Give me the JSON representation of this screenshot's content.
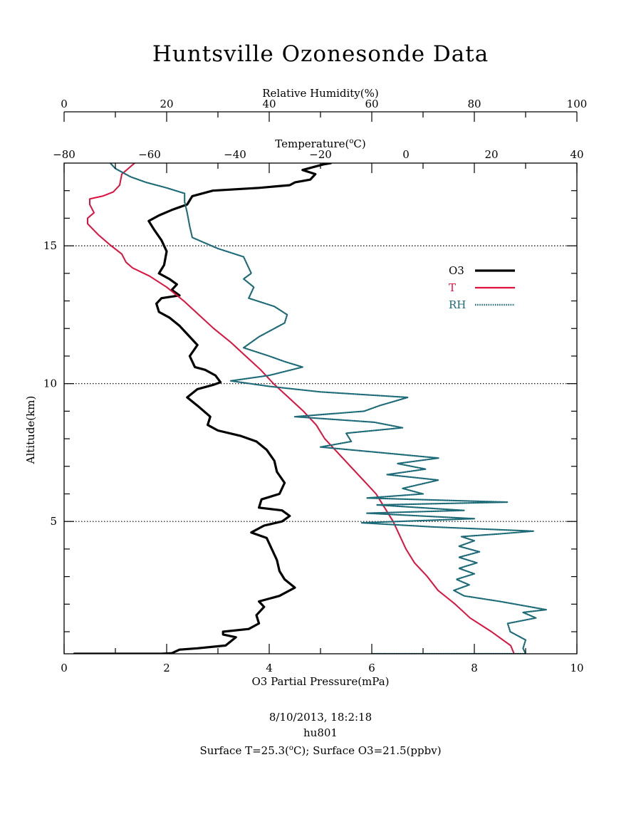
{
  "page": {
    "title": "Huntsville Ozonesonde Data"
  },
  "footer": {
    "line1": "8/10/2013, 18:2:18",
    "line2": "hu801",
    "line3_prefix": "Surface T=25.3(",
    "line3_sup": "o",
    "line3_suffix": "C); Surface O3=21.5(ppbv)"
  },
  "chart_data": {
    "type": "line",
    "title": "Huntsville Ozonesonde Data",
    "axes": {
      "x_bottom": {
        "label": "O3 Partial Pressure(mPa)",
        "range": [
          0,
          10
        ],
        "ticks": [
          0,
          2,
          4,
          6,
          8,
          10
        ]
      },
      "x_top_rh": {
        "label": "Relative Humidity(%)",
        "range": [
          0,
          100
        ],
        "ticks": [
          0,
          20,
          40,
          60,
          80,
          100
        ]
      },
      "x_top_temp": {
        "label_prefix": "Temperature(",
        "label_sup": "o",
        "label_suffix": "C)",
        "range": [
          -80,
          40
        ],
        "ticks": [
          -80,
          -60,
          -40,
          -20,
          0,
          20,
          40
        ]
      },
      "y": {
        "label": "Altitude(km)",
        "range": [
          0.2,
          18
        ],
        "ticks": [
          5,
          10,
          15
        ]
      }
    },
    "gridlines_y": [
      5,
      10,
      15
    ],
    "legend": {
      "placement": "right",
      "entries": [
        "O3",
        "T",
        "RH"
      ]
    },
    "colors": {
      "O3": "#000000",
      "T": "#e0103c",
      "RH": "#1e6b78"
    },
    "series": [
      {
        "name": "O3",
        "x_units": "mPa",
        "points": [
          [
            0.2,
            0.2
          ],
          [
            1.9,
            0.2
          ],
          [
            2.1,
            0.22
          ],
          [
            2.25,
            0.35
          ],
          [
            2.6,
            0.4
          ],
          [
            3.15,
            0.5
          ],
          [
            3.35,
            0.8
          ],
          [
            3.1,
            0.9
          ],
          [
            3.1,
            1.0
          ],
          [
            3.6,
            1.1
          ],
          [
            3.8,
            1.3
          ],
          [
            3.75,
            1.6
          ],
          [
            3.9,
            1.9
          ],
          [
            3.8,
            2.1
          ],
          [
            4.2,
            2.3
          ],
          [
            4.5,
            2.6
          ],
          [
            4.3,
            2.9
          ],
          [
            4.2,
            3.2
          ],
          [
            4.15,
            3.6
          ],
          [
            4.05,
            4.0
          ],
          [
            3.95,
            4.4
          ],
          [
            3.65,
            4.6
          ],
          [
            3.9,
            4.85
          ],
          [
            4.25,
            5.0
          ],
          [
            4.4,
            5.2
          ],
          [
            4.25,
            5.4
          ],
          [
            3.8,
            5.5
          ],
          [
            3.85,
            5.8
          ],
          [
            4.2,
            6.0
          ],
          [
            4.3,
            6.4
          ],
          [
            4.15,
            6.8
          ],
          [
            4.1,
            7.2
          ],
          [
            3.95,
            7.6
          ],
          [
            3.75,
            7.9
          ],
          [
            3.45,
            8.1
          ],
          [
            3.0,
            8.3
          ],
          [
            2.8,
            8.5
          ],
          [
            2.85,
            8.8
          ],
          [
            2.6,
            9.2
          ],
          [
            2.4,
            9.5
          ],
          [
            2.6,
            9.8
          ],
          [
            2.9,
            9.95
          ],
          [
            3.05,
            10.05
          ],
          [
            2.95,
            10.3
          ],
          [
            2.75,
            10.5
          ],
          [
            2.55,
            10.6
          ],
          [
            2.45,
            11.0
          ],
          [
            2.6,
            11.4
          ],
          [
            2.4,
            11.8
          ],
          [
            2.25,
            12.1
          ],
          [
            2.05,
            12.4
          ],
          [
            1.85,
            12.6
          ],
          [
            1.8,
            12.9
          ],
          [
            1.9,
            13.1
          ],
          [
            2.25,
            13.2
          ],
          [
            2.1,
            13.4
          ],
          [
            2.2,
            13.6
          ],
          [
            2.05,
            13.8
          ],
          [
            1.85,
            14.0
          ],
          [
            1.95,
            14.3
          ],
          [
            2.0,
            14.8
          ],
          [
            1.9,
            15.2
          ],
          [
            1.75,
            15.6
          ],
          [
            1.65,
            15.9
          ],
          [
            1.85,
            16.1
          ],
          [
            2.1,
            16.3
          ],
          [
            2.4,
            16.5
          ],
          [
            2.5,
            16.8
          ],
          [
            2.9,
            17.0
          ],
          [
            3.8,
            17.1
          ],
          [
            4.4,
            17.2
          ],
          [
            4.5,
            17.3
          ],
          [
            4.8,
            17.4
          ],
          [
            4.9,
            17.6
          ],
          [
            4.65,
            17.75
          ],
          [
            4.85,
            17.85
          ],
          [
            5.05,
            17.95
          ],
          [
            5.2,
            18.0
          ]
        ]
      },
      {
        "name": "T",
        "x_units": "degC",
        "points": [
          [
            25.3,
            0.2
          ],
          [
            24.5,
            0.5
          ],
          [
            20,
            1.0
          ],
          [
            15,
            1.5
          ],
          [
            11.5,
            2.0
          ],
          [
            7.5,
            2.5
          ],
          [
            5,
            3.0
          ],
          [
            2,
            3.5
          ],
          [
            0,
            4.0
          ],
          [
            -1.5,
            4.5
          ],
          [
            -3,
            5.0
          ],
          [
            -5,
            5.5
          ],
          [
            -7,
            6.0
          ],
          [
            -10,
            6.5
          ],
          [
            -13,
            7.0
          ],
          [
            -16,
            7.5
          ],
          [
            -19,
            8.0
          ],
          [
            -21,
            8.5
          ],
          [
            -24,
            9.0
          ],
          [
            -27.5,
            9.5
          ],
          [
            -31,
            10.0
          ],
          [
            -34,
            10.5
          ],
          [
            -37.5,
            11.0
          ],
          [
            -41,
            11.5
          ],
          [
            -45,
            12.0
          ],
          [
            -48.5,
            12.5
          ],
          [
            -52,
            13.0
          ],
          [
            -56,
            13.5
          ],
          [
            -60,
            13.9
          ],
          [
            -64,
            14.2
          ],
          [
            -65.5,
            14.4
          ],
          [
            -66.5,
            14.7
          ],
          [
            -69,
            15.0
          ],
          [
            -72,
            15.4
          ],
          [
            -74.5,
            15.8
          ],
          [
            -74.5,
            16.0
          ],
          [
            -73,
            16.2
          ],
          [
            -74,
            16.5
          ],
          [
            -74,
            16.7
          ],
          [
            -71,
            16.8
          ],
          [
            -68.5,
            16.95
          ],
          [
            -67,
            17.2
          ],
          [
            -66.5,
            17.6
          ],
          [
            -65,
            17.8
          ],
          [
            -63.5,
            18.0
          ]
        ]
      },
      {
        "name": "RH",
        "x_units": "%",
        "points": [
          [
            60,
            0.2
          ],
          [
            90,
            0.2
          ],
          [
            89.5,
            0.4
          ],
          [
            90,
            0.7
          ],
          [
            87,
            1.0
          ],
          [
            86.5,
            1.3
          ],
          [
            92,
            1.5
          ],
          [
            89.5,
            1.7
          ],
          [
            94,
            1.8
          ],
          [
            85,
            2.1
          ],
          [
            78,
            2.3
          ],
          [
            76,
            2.5
          ],
          [
            79,
            2.7
          ],
          [
            76.5,
            2.9
          ],
          [
            80,
            3.1
          ],
          [
            77,
            3.3
          ],
          [
            80.5,
            3.5
          ],
          [
            77,
            3.7
          ],
          [
            81,
            3.9
          ],
          [
            77,
            4.1
          ],
          [
            80,
            4.3
          ],
          [
            77.5,
            4.45
          ],
          [
            85,
            4.55
          ],
          [
            91.5,
            4.65
          ],
          [
            72,
            4.8
          ],
          [
            58,
            4.95
          ],
          [
            80,
            5.1
          ],
          [
            59,
            5.3
          ],
          [
            78,
            5.4
          ],
          [
            61,
            5.6
          ],
          [
            86.5,
            5.7
          ],
          [
            59,
            5.85
          ],
          [
            70,
            6.0
          ],
          [
            66,
            6.2
          ],
          [
            73,
            6.5
          ],
          [
            63,
            6.7
          ],
          [
            70.5,
            6.9
          ],
          [
            65,
            7.1
          ],
          [
            73,
            7.3
          ],
          [
            61.5,
            7.5
          ],
          [
            50,
            7.7
          ],
          [
            56,
            7.9
          ],
          [
            55,
            8.2
          ],
          [
            66,
            8.4
          ],
          [
            60.5,
            8.6
          ],
          [
            45,
            8.8
          ],
          [
            58.5,
            9.0
          ],
          [
            61.5,
            9.2
          ],
          [
            67,
            9.5
          ],
          [
            50,
            9.7
          ],
          [
            40,
            9.9
          ],
          [
            32.5,
            10.1
          ],
          [
            40,
            10.3
          ],
          [
            46.5,
            10.6
          ],
          [
            43,
            10.8
          ],
          [
            40,
            11.0
          ],
          [
            35,
            11.3
          ],
          [
            38,
            11.7
          ],
          [
            43,
            12.2
          ],
          [
            43.5,
            12.5
          ],
          [
            41,
            12.8
          ],
          [
            36,
            13.1
          ],
          [
            37,
            13.5
          ],
          [
            35,
            13.8
          ],
          [
            36.5,
            14.0
          ],
          [
            35,
            14.6
          ],
          [
            30,
            14.9
          ],
          [
            25,
            15.3
          ],
          [
            24.5,
            15.7
          ],
          [
            24,
            16.2
          ],
          [
            23.5,
            16.6
          ],
          [
            23.5,
            16.9
          ],
          [
            20,
            17.1
          ],
          [
            16,
            17.3
          ],
          [
            13,
            17.5
          ],
          [
            10,
            17.8
          ],
          [
            9,
            18.0
          ]
        ]
      }
    ]
  }
}
